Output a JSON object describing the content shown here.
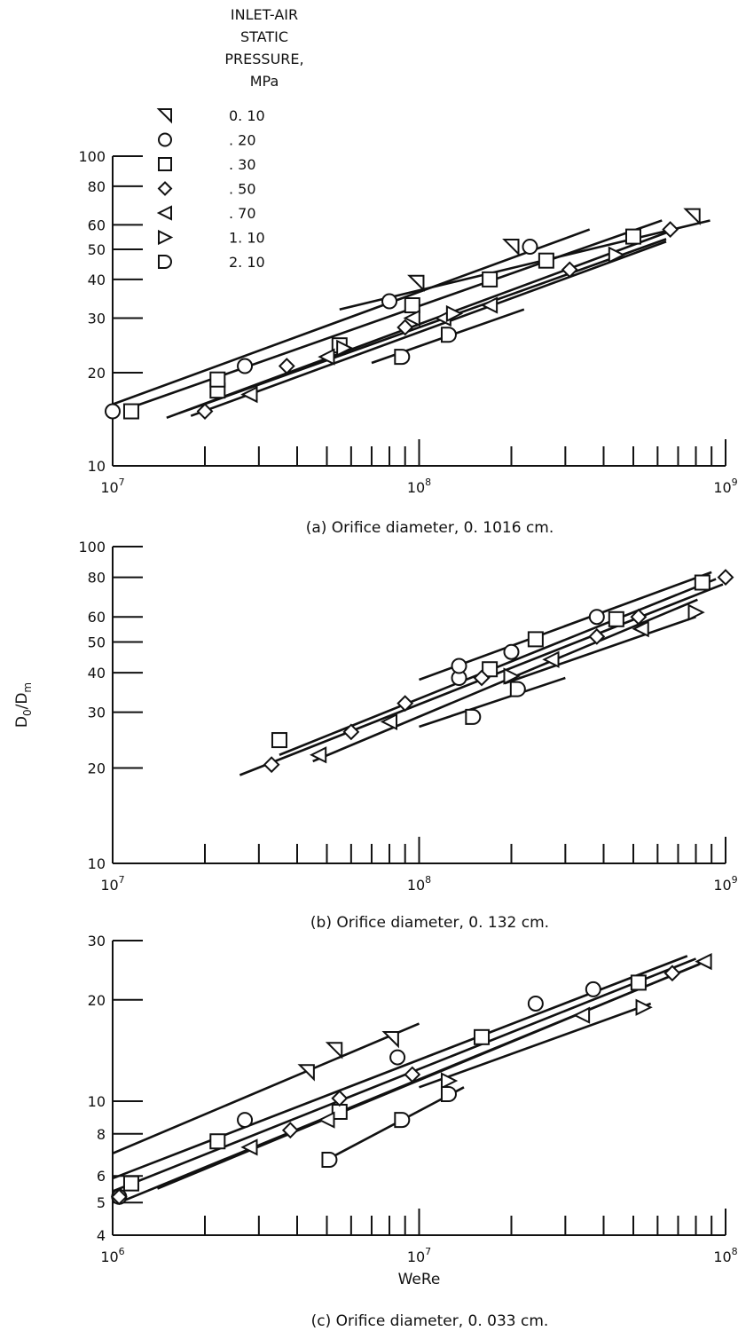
{
  "figure": {
    "legend": {
      "title_lines": [
        "INLET-AIR",
        "STATIC",
        "PRESSURE,",
        "MPa"
      ],
      "entries": [
        {
          "symbol": "half-triangle-left",
          "value": "0. 10"
        },
        {
          "symbol": "circle",
          "value": ". 20"
        },
        {
          "symbol": "square",
          "value": ". 30"
        },
        {
          "symbol": "diamond",
          "value": ". 50"
        },
        {
          "symbol": "triangle-left",
          "value": ". 70"
        },
        {
          "symbol": "triangle-right",
          "value": "1. 10"
        },
        {
          "symbol": "half-circle-right",
          "value": "2. 10"
        }
      ]
    },
    "colors": {
      "ink": "#111111",
      "background": "#ffffff"
    }
  },
  "chart_data": [
    {
      "type": "scatter",
      "panel": "a",
      "caption": "(a) Orifice diameter, 0. 1016 cm.",
      "xlabel": "",
      "ylabel": "",
      "xscale": "log",
      "yscale": "log",
      "xlim": [
        10000000,
        1000000000
      ],
      "ylim": [
        10,
        100
      ],
      "x_tick_labels": [
        {
          "value": 10000000,
          "base": "10",
          "exp": "7"
        },
        {
          "value": 100000000,
          "base": "10",
          "exp": "8"
        },
        {
          "value": 1000000000,
          "base": "10",
          "exp": "9"
        }
      ],
      "y_tick_labels": [
        "10",
        "20",
        "30",
        "40",
        "50",
        "60",
        "80",
        "100"
      ],
      "series": [
        {
          "symbol": "circle",
          "points": [
            [
              10000000,
              15
            ],
            [
              27000000,
              21
            ],
            [
              80000000,
              34
            ],
            [
              230000000,
              51
            ]
          ],
          "fit": [
            [
              10000000,
              15.8
            ],
            [
              360000000,
              58
            ]
          ]
        },
        {
          "symbol": "square",
          "points": [
            [
              11500000,
              15
            ],
            [
              22000000,
              17.5
            ],
            [
              22000000,
              19
            ],
            [
              55000000,
              24.5
            ],
            [
              95000000,
              33
            ],
            [
              170000000,
              40
            ],
            [
              260000000,
              46
            ],
            [
              500000000,
              55
            ]
          ],
          "fit": [
            [
              11000000,
              15.2
            ],
            [
              620000000,
              62
            ]
          ]
        },
        {
          "symbol": "diamond",
          "points": [
            [
              20000000,
              15
            ],
            [
              37000000,
              21
            ],
            [
              90000000,
              28
            ],
            [
              310000000,
              43
            ],
            [
              660000000,
              58
            ]
          ],
          "fit": [
            [
              15000000,
              14.3
            ],
            [
              700000000,
              58.5
            ]
          ]
        },
        {
          "symbol": "triangle-left",
          "points": [
            [
              28000000,
              17
            ],
            [
              50000000,
              22.5
            ],
            [
              95000000,
              30
            ],
            [
              120000000,
              30
            ],
            [
              170000000,
              33
            ]
          ],
          "fit": [
            [
              16500000,
              14.8
            ],
            [
              640000000,
              54
            ]
          ]
        },
        {
          "symbol": "triangle-right",
          "points": [
            [
              57000000,
              24
            ],
            [
              130000000,
              31
            ],
            [
              440000000,
              48
            ]
          ],
          "fit": [
            [
              18000000,
              14.5
            ],
            [
              640000000,
              53
            ]
          ]
        },
        {
          "symbol": "half-triangle-left",
          "points": [
            [
              98000000,
              39
            ],
            [
              200000000,
              51
            ],
            [
              780000000,
              64
            ]
          ],
          "fit": [
            [
              55000000,
              32
            ],
            [
              890000000,
              62
            ]
          ]
        },
        {
          "symbol": "half-circle-right",
          "points": [
            [
              88000000,
              22.5
            ],
            [
              125000000,
              26.5
            ]
          ],
          "fit": [
            [
              70000000,
              21.5
            ],
            [
              220000000,
              32
            ]
          ]
        }
      ]
    },
    {
      "type": "scatter",
      "panel": "b",
      "caption": "(b) Orifice diameter, 0. 132 cm.",
      "xlabel": "",
      "ylabel": "D0/Dm",
      "ylabel_parts": {
        "main": "D",
        "sub1": "0",
        "sep": "/D",
        "sub2": "m"
      },
      "xscale": "log",
      "yscale": "log",
      "xlim": [
        10000000,
        1000000000
      ],
      "ylim": [
        10,
        100
      ],
      "x_tick_labels": [
        {
          "value": 10000000,
          "base": "10",
          "exp": "7"
        },
        {
          "value": 100000000,
          "base": "10",
          "exp": "8"
        },
        {
          "value": 1000000000,
          "base": "10",
          "exp": "9"
        }
      ],
      "y_tick_labels": [
        "10",
        "20",
        "30",
        "40",
        "50",
        "60",
        "80",
        "100"
      ],
      "series": [
        {
          "symbol": "circle",
          "points": [
            [
              135000000,
              38.5
            ],
            [
              135000000,
              42
            ],
            [
              200000000,
              46.5
            ],
            [
              380000000,
              60
            ]
          ],
          "fit": [
            [
              100000000,
              38
            ],
            [
              900000000,
              83
            ]
          ]
        },
        {
          "symbol": "square",
          "points": [
            [
              35000000,
              24.5
            ],
            [
              170000000,
              41
            ],
            [
              240000000,
              51
            ],
            [
              440000000,
              59
            ],
            [
              840000000,
              77
            ]
          ],
          "fit": [
            [
              35000000,
              22
            ],
            [
              930000000,
              79
            ]
          ]
        },
        {
          "symbol": "diamond",
          "points": [
            [
              33000000,
              20.5
            ],
            [
              60000000,
              26
            ],
            [
              90000000,
              32
            ],
            [
              160000000,
              38.5
            ],
            [
              380000000,
              52
            ],
            [
              520000000,
              60
            ],
            [
              1000000000,
              80
            ]
          ],
          "fit": [
            [
              26000000,
              19
            ],
            [
              980000000,
              76
            ]
          ]
        },
        {
          "symbol": "triangle-left",
          "points": [
            [
              47000000,
              22
            ],
            [
              80000000,
              28
            ],
            [
              270000000,
              44
            ],
            [
              530000000,
              55
            ]
          ],
          "fit": [
            [
              45000000,
              21
            ],
            [
              810000000,
              68
            ]
          ]
        },
        {
          "symbol": "triangle-right",
          "points": [
            [
              200000000,
              39
            ],
            [
              800000000,
              62
            ]
          ],
          "fit": [
            [
              190000000,
              37
            ],
            [
              800000000,
              60
            ]
          ]
        },
        {
          "symbol": "half-circle-right",
          "points": [
            [
              150000000,
              29
            ],
            [
              210000000,
              35.5
            ]
          ],
          "fit": [
            [
              100000000,
              27
            ],
            [
              300000000,
              38.5
            ]
          ]
        }
      ]
    },
    {
      "type": "scatter",
      "panel": "c",
      "caption": "(c) Orifice diameter, 0. 033 cm.",
      "xlabel": "WeRe",
      "ylabel": "",
      "xscale": "log",
      "yscale": "log",
      "xlim": [
        1000000,
        100000000
      ],
      "ylim": [
        4,
        30
      ],
      "x_tick_labels": [
        {
          "value": 1000000,
          "base": "10",
          "exp": "6"
        },
        {
          "value": 10000000,
          "base": "10",
          "exp": "7"
        },
        {
          "value": 100000000,
          "base": "10",
          "exp": "8"
        }
      ],
      "y_tick_labels": [
        "4",
        "5",
        "6",
        "8",
        "10",
        "20",
        "30"
      ],
      "series": [
        {
          "symbol": "circle",
          "points": [
            [
              1050000,
              5.2
            ],
            [
              2700000,
              8.8
            ],
            [
              8500000,
              13.5
            ],
            [
              24000000,
              19.5
            ],
            [
              37000000,
              21.5
            ]
          ],
          "fit": [
            [
              1000000,
              5.9
            ],
            [
              75000000,
              27
            ]
          ]
        },
        {
          "symbol": "square",
          "points": [
            [
              1150000,
              5.7
            ],
            [
              2200000,
              7.6
            ],
            [
              5500000,
              9.3
            ],
            [
              16000000,
              15.5
            ],
            [
              52000000,
              22.5
            ]
          ],
          "fit": [
            [
              1000000,
              5.4
            ],
            [
              80000000,
              26.5
            ]
          ]
        },
        {
          "symbol": "diamond",
          "points": [
            [
              1050000,
              5.2
            ],
            [
              3800000,
              8.2
            ],
            [
              5500000,
              10.2
            ],
            [
              9500000,
              12
            ],
            [
              67000000,
              24
            ]
          ],
          "fit": [
            [
              1050000,
              5
            ],
            [
              82000000,
              25.5
            ]
          ]
        },
        {
          "symbol": "triangle-left",
          "points": [
            [
              2800000,
              7.3
            ],
            [
              5000000,
              8.8
            ],
            [
              34000000,
              18
            ],
            [
              85000000,
              26
            ]
          ],
          "fit": [
            [
              1400000,
              5.5
            ],
            [
              86000000,
              26
            ]
          ]
        },
        {
          "symbol": "triangle-right",
          "points": [
            [
              12500000,
              11.5
            ],
            [
              54000000,
              19
            ]
          ],
          "fit": [
            [
              10000000,
              11
            ],
            [
              57000000,
              19.5
            ]
          ]
        },
        {
          "symbol": "half-triangle-left",
          "points": [
            [
              4300000,
              12.2
            ],
            [
              5300000,
              14.2
            ],
            [
              8100000,
              15.3
            ]
          ],
          "fit": [
            [
              1000000,
              7
            ],
            [
              10000000,
              17
            ]
          ]
        },
        {
          "symbol": "half-circle-right",
          "points": [
            [
              5100000,
              6.7
            ],
            [
              8800000,
              8.8
            ],
            [
              12500000,
              10.5
            ]
          ],
          "fit": [
            [
              5000000,
              6.7
            ],
            [
              14000000,
              11
            ]
          ]
        }
      ]
    }
  ]
}
